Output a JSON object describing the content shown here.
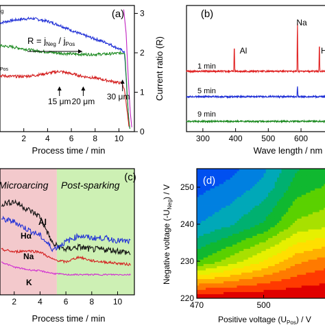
{
  "chart_data": [
    {
      "panel": "(a)",
      "type": "line",
      "xlabel": "Process time / min",
      "ylabel": "Current ratio (R)",
      "xlim": [
        0,
        11.3
      ],
      "ylim": [
        0,
        3.2
      ],
      "xticks": [
        "2",
        "4",
        "6",
        "8",
        "10"
      ],
      "yticks": [
        "0",
        "1",
        "2",
        "3"
      ],
      "annotation": "R = jNeg / jPos",
      "annotation_parts": {
        "main": "R = j",
        "sub1": "Neg",
        "mid": " / j",
        "sub2": "Pos"
      },
      "edge_labels": [
        "g",
        "Pos"
      ],
      "markers": [
        {
          "label": "15 μm",
          "x": 5.0
        },
        {
          "label": "20 μm",
          "x": 7.0
        },
        {
          "label": "30 μm",
          "x": 10.3
        }
      ],
      "series": [
        {
          "color": "#1f2fd6",
          "x": [
            0,
            1,
            2,
            2.8,
            4,
            5,
            6,
            7,
            8,
            9,
            10,
            10.45,
            10.6,
            10.75,
            10.9
          ],
          "values": [
            2.76,
            2.82,
            2.86,
            2.87,
            2.8,
            2.7,
            2.57,
            2.45,
            2.35,
            2.25,
            2.1,
            2.03,
            1.4,
            0.6,
            0.05
          ]
        },
        {
          "color": "#1e8b22",
          "x": [
            0,
            1,
            2,
            3,
            4,
            5,
            6,
            7,
            8,
            9,
            10,
            10.5,
            10.65,
            10.8,
            10.95
          ],
          "values": [
            2.18,
            2.15,
            2.1,
            2.05,
            2.02,
            1.99,
            1.97,
            1.96,
            1.96,
            1.97,
            1.99,
            2.0,
            1.2,
            0.4,
            0.02
          ]
        },
        {
          "color": "#d42020",
          "x": [
            0,
            1,
            2,
            3,
            4,
            5,
            6,
            7,
            8,
            9,
            10,
            10.3,
            10.5,
            10.7,
            10.85
          ],
          "values": [
            1.42,
            1.4,
            1.4,
            1.43,
            1.48,
            1.53,
            1.47,
            1.4,
            1.36,
            1.3,
            1.24,
            1.22,
            1.0,
            0.5,
            0.1
          ]
        },
        {
          "color": "#c020c0",
          "x": [
            10.4,
            10.6,
            10.8,
            10.95,
            11.1
          ],
          "values": [
            3.1,
            2.5,
            1.3,
            0.5,
            0.05
          ]
        }
      ]
    },
    {
      "panel": "(b)",
      "type": "line",
      "xlabel": "Wave length / nm",
      "xlim": [
        250,
        690
      ],
      "xticks": [
        "300",
        "400",
        "500",
        "600"
      ],
      "peaks": [
        {
          "label": "Al",
          "x": 396
        },
        {
          "label": "Na",
          "x": 589
        },
        {
          "label": "Hα",
          "x": 656
        }
      ],
      "series": [
        {
          "name": "1 min",
          "color": "#e02020",
          "peaks": [
            396,
            589,
            656
          ],
          "peak_heights": [
            0.55,
            1.0,
            0.6
          ]
        },
        {
          "name": "5 min",
          "color": "#1f2fd6",
          "peaks": [
            589
          ],
          "peak_heights": [
            0.22
          ]
        },
        {
          "name": "9 min",
          "color": "#1e8b22",
          "peaks": [],
          "peak_heights": []
        }
      ]
    },
    {
      "panel": "(c)",
      "type": "line",
      "xlabel": "Process time / min",
      "xlim": [
        0.9,
        11.3
      ],
      "xticks": [
        "2",
        "4",
        "6",
        "8",
        "10"
      ],
      "regions": [
        {
          "label": "Microarcing",
          "from": 0.9,
          "to": 5.3,
          "color": "#f3c9cc"
        },
        {
          "label": "Post-sparking",
          "from": 5.3,
          "to": 11.3,
          "color": "#cdf0b4"
        }
      ],
      "series": [
        {
          "name": "Al",
          "color": "#111111",
          "x": [
            1,
            2,
            3,
            4,
            5,
            6,
            7,
            8,
            9,
            10,
            11
          ],
          "values": [
            0.72,
            0.74,
            0.68,
            0.62,
            0.4,
            0.36,
            0.38,
            0.36,
            0.36,
            0.35,
            0.33
          ]
        },
        {
          "name": "Hα",
          "color": "#1f2fd6",
          "x": [
            1,
            2,
            3,
            4,
            5,
            6,
            7,
            8,
            9,
            10,
            11
          ],
          "values": [
            0.6,
            0.58,
            0.52,
            0.47,
            0.36,
            0.42,
            0.47,
            0.45,
            0.45,
            0.43,
            0.42
          ]
        },
        {
          "name": "Na",
          "color": "#d42020",
          "x": [
            1,
            2,
            3,
            4,
            5,
            6,
            7,
            8,
            9,
            10,
            11
          ],
          "values": [
            0.36,
            0.34,
            0.35,
            0.34,
            0.28,
            0.26,
            0.3,
            0.27,
            0.26,
            0.25,
            0.24
          ]
        },
        {
          "name": "K",
          "color": "#d030d0",
          "x": [
            1,
            2,
            3,
            4,
            5,
            6,
            7,
            8,
            9,
            10,
            11
          ],
          "values": [
            0.26,
            0.22,
            0.2,
            0.19,
            0.17,
            0.16,
            0.16,
            0.16,
            0.16,
            0.16,
            0.16
          ]
        }
      ]
    },
    {
      "panel": "(d)",
      "type": "heatmap",
      "xlabel": "Positive voltage (UPos) / V",
      "xlabel_parts": {
        "main": "Positive voltage (U",
        "sub": "Pos",
        "end": ") / V"
      },
      "ylabel": "Negative voltage (-UNeg) / V",
      "ylabel_parts": {
        "main": "Negative voltage (-U",
        "sub": "Neg",
        "end": ") / V"
      },
      "xlim": [
        470,
        530
      ],
      "ylim": [
        220,
        255
      ],
      "xticks": [
        "470",
        "500"
      ],
      "yticks": [
        "220",
        "230",
        "240",
        "250"
      ],
      "levels": [
        "#e00000",
        "#ff3a00",
        "#ff7a00",
        "#ffb000",
        "#ffdf00",
        "#e6f000",
        "#a8e000",
        "#5ad100",
        "#10b830",
        "#00b070",
        "#00a8b8",
        "#0080e0",
        "#0050f0"
      ],
      "grid": {
        "x": [
          470,
          485,
          500,
          515,
          530
        ],
        "y": [
          220,
          230,
          240,
          250,
          255
        ],
        "z": [
          [
            0.0,
            0.0,
            0.0,
            0.0,
            0.0
          ],
          [
            0.62,
            0.5,
            0.38,
            0.25,
            0.18
          ],
          [
            0.85,
            0.78,
            0.68,
            0.52,
            0.48
          ],
          [
            0.95,
            0.9,
            0.82,
            0.65,
            0.6
          ],
          [
            1.0,
            0.95,
            0.86,
            0.7,
            0.65
          ]
        ]
      }
    }
  ]
}
